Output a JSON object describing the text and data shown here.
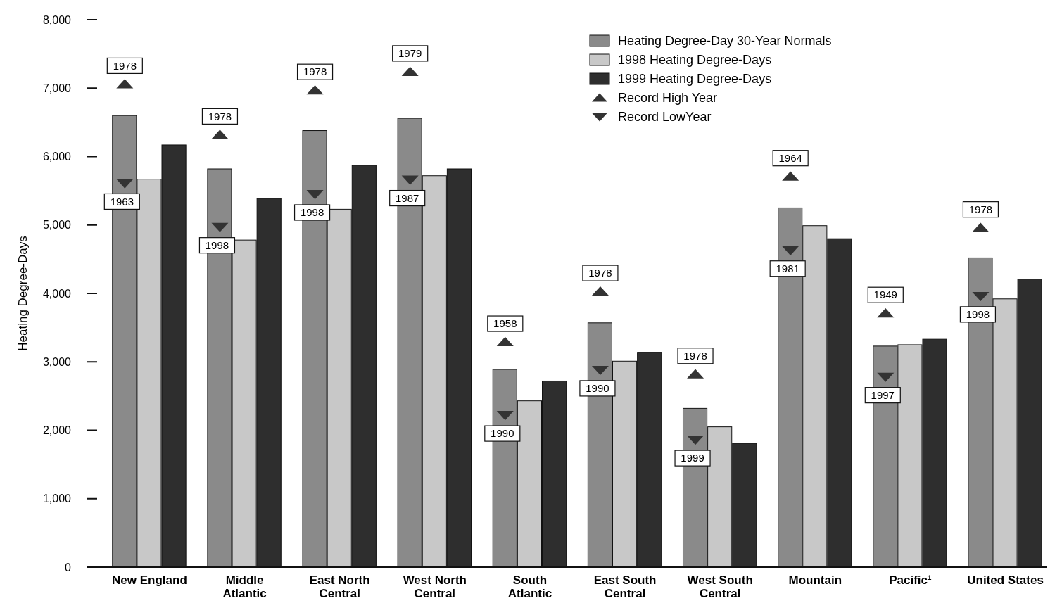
{
  "chart_data": {
    "type": "bar",
    "ylabel": "Heating Degree-Days",
    "categories": [
      "New England",
      "Middle Atlantic",
      "East North Central",
      "West North Central",
      "South Atlantic",
      "East South Central",
      "West South Central",
      "Mountain",
      "Pacific¹",
      "United States"
    ],
    "series": [
      {
        "name": "Heating Degree-Day 30-Year Normals",
        "color": "#8a8a8a",
        "values": [
          6600,
          5820,
          6380,
          6560,
          2890,
          3570,
          2320,
          5250,
          3230,
          4520
        ]
      },
      {
        "name": "1998 Heating Degree-Days",
        "color": "#c8c8c8",
        "values": [
          5670,
          4780,
          5230,
          5720,
          2430,
          3010,
          2050,
          4990,
          3250,
          3920
        ]
      },
      {
        "name": "1999 Heating Degree-Days",
        "color": "#2e2e2e",
        "values": [
          6170,
          5390,
          5870,
          5820,
          2720,
          3140,
          1810,
          4800,
          3330,
          4210
        ]
      },
      {
        "name": "Record High Year",
        "type": "scatter",
        "marker": "triangle",
        "color": "#333333",
        "x": [
          "New England",
          "Middle Atlantic",
          "East North Central",
          "West North Central",
          "South Atlantic",
          "East South Central",
          "West South Central",
          "Mountain",
          "Pacific¹",
          "United States"
        ],
        "values": [
          7060,
          6320,
          6970,
          7240,
          3290,
          4030,
          2820,
          5710,
          3710,
          4960
        ]
      },
      {
        "name": "Record LowYear",
        "type": "scatter",
        "marker": "triangle-down",
        "color": "#333333",
        "x": [
          "New England",
          "Middle Atlantic",
          "East North Central",
          "West North Central",
          "South Atlantic",
          "East South Central",
          "West South Central",
          "Mountain",
          "Pacific¹",
          "United States"
        ],
        "values": [
          5610,
          4970,
          5450,
          5660,
          2220,
          2880,
          1860,
          4630,
          2780,
          3960
        ]
      }
    ],
    "annotations": [
      "1978",
      "1963",
      "1978",
      "1998",
      "1978",
      "1998",
      "1979",
      "1987",
      "1958",
      "1990",
      "1978",
      "1990",
      "1978",
      "1999",
      "1964",
      "1981",
      "1949",
      "1997",
      "1978",
      "1998"
    ],
    "ylim": [
      0,
      8000
    ],
    "yticks": [
      0,
      {
        "value": 1000,
        "label": "1,000"
      },
      {
        "value": 2000,
        "label": "2,000"
      },
      {
        "value": 3000,
        "label": "3,000"
      },
      {
        "value": 4000,
        "label": "4,000"
      },
      {
        "value": 5000,
        "label": "5,000"
      },
      {
        "value": 6000,
        "label": "6,000"
      },
      {
        "value": 7000,
        "label": "7,000"
      },
      {
        "value": 8000,
        "label": "8,000"
      }
    ],
    "grid": false,
    "legend": "top right"
  }
}
